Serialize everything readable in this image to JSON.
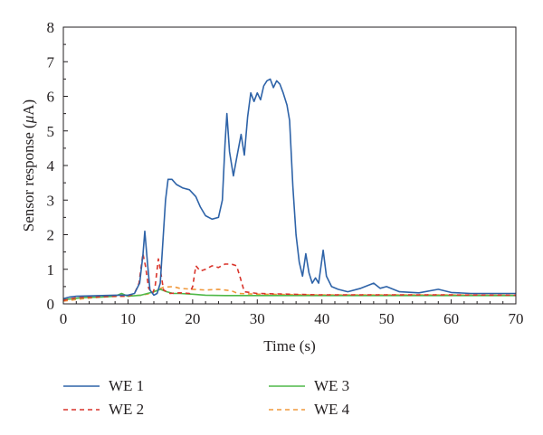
{
  "chart_data": {
    "type": "line",
    "xlabel": "Time (s)",
    "ylabel_prefix": "Sensor response (",
    "ylabel_unit": "μ",
    "ylabel_suffix": "A)",
    "xlim": [
      0,
      70
    ],
    "ylim": [
      0,
      8
    ],
    "xticks": [
      0,
      10,
      20,
      30,
      40,
      50,
      60,
      70
    ],
    "yticks": [
      0,
      1,
      2,
      3,
      4,
      5,
      6,
      7,
      8
    ],
    "grid": false,
    "legend_position": "bottom",
    "series": [
      {
        "name": "WE 1",
        "color": "#2e63a8",
        "dash": "solid",
        "points": [
          [
            0,
            0.15
          ],
          [
            1,
            0.2
          ],
          [
            2,
            0.22
          ],
          [
            4,
            0.23
          ],
          [
            6,
            0.24
          ],
          [
            8,
            0.25
          ],
          [
            10,
            0.25
          ],
          [
            11,
            0.3
          ],
          [
            11.8,
            0.6
          ],
          [
            12.3,
            1.4
          ],
          [
            12.6,
            2.1
          ],
          [
            13,
            1.2
          ],
          [
            13.4,
            0.4
          ],
          [
            14,
            0.25
          ],
          [
            14.5,
            0.3
          ],
          [
            15,
            0.6
          ],
          [
            15.4,
            1.8
          ],
          [
            15.8,
            3.0
          ],
          [
            16.2,
            3.6
          ],
          [
            16.8,
            3.6
          ],
          [
            17.5,
            3.45
          ],
          [
            18.5,
            3.35
          ],
          [
            19.5,
            3.3
          ],
          [
            20.5,
            3.1
          ],
          [
            21.2,
            2.8
          ],
          [
            22,
            2.55
          ],
          [
            23,
            2.45
          ],
          [
            24,
            2.5
          ],
          [
            24.6,
            3.0
          ],
          [
            25,
            4.6
          ],
          [
            25.3,
            5.5
          ],
          [
            25.7,
            4.4
          ],
          [
            26.3,
            3.7
          ],
          [
            26.8,
            4.2
          ],
          [
            27.5,
            4.9
          ],
          [
            28,
            4.3
          ],
          [
            28.5,
            5.4
          ],
          [
            29,
            6.1
          ],
          [
            29.5,
            5.85
          ],
          [
            30,
            6.1
          ],
          [
            30.5,
            5.9
          ],
          [
            31,
            6.3
          ],
          [
            31.5,
            6.45
          ],
          [
            32,
            6.5
          ],
          [
            32.5,
            6.25
          ],
          [
            33,
            6.45
          ],
          [
            33.5,
            6.35
          ],
          [
            34,
            6.1
          ],
          [
            34.6,
            5.75
          ],
          [
            35,
            5.3
          ],
          [
            35.5,
            3.4
          ],
          [
            36,
            2.0
          ],
          [
            36.5,
            1.2
          ],
          [
            37,
            0.8
          ],
          [
            37.5,
            1.45
          ],
          [
            38,
            0.9
          ],
          [
            38.5,
            0.6
          ],
          [
            39,
            0.75
          ],
          [
            39.5,
            0.6
          ],
          [
            40.2,
            1.55
          ],
          [
            40.7,
            0.8
          ],
          [
            41.5,
            0.5
          ],
          [
            42.5,
            0.42
          ],
          [
            44,
            0.35
          ],
          [
            46,
            0.45
          ],
          [
            48,
            0.6
          ],
          [
            49,
            0.45
          ],
          [
            50,
            0.5
          ],
          [
            52,
            0.35
          ],
          [
            55,
            0.32
          ],
          [
            58,
            0.42
          ],
          [
            60,
            0.33
          ],
          [
            63,
            0.3
          ],
          [
            67,
            0.3
          ],
          [
            70,
            0.3
          ]
        ]
      },
      {
        "name": "WE 2",
        "color": "#d9342b",
        "dash": "5,4",
        "points": [
          [
            0,
            0.1
          ],
          [
            2,
            0.18
          ],
          [
            5,
            0.2
          ],
          [
            8,
            0.22
          ],
          [
            10,
            0.22
          ],
          [
            11,
            0.3
          ],
          [
            11.7,
            0.6
          ],
          [
            12.3,
            1.45
          ],
          [
            12.7,
            1.1
          ],
          [
            13.2,
            0.45
          ],
          [
            13.8,
            0.3
          ],
          [
            14.2,
            0.5
          ],
          [
            14.7,
            1.3
          ],
          [
            15,
            1.0
          ],
          [
            15.5,
            0.4
          ],
          [
            16.5,
            0.3
          ],
          [
            18,
            0.32
          ],
          [
            19.5,
            0.3
          ],
          [
            20,
            0.5
          ],
          [
            20.5,
            1.1
          ],
          [
            21.2,
            0.95
          ],
          [
            22,
            1.0
          ],
          [
            23,
            1.1
          ],
          [
            24,
            1.05
          ],
          [
            25,
            1.15
          ],
          [
            26,
            1.15
          ],
          [
            26.8,
            1.1
          ],
          [
            27.3,
            0.8
          ],
          [
            28,
            0.35
          ],
          [
            30,
            0.3
          ],
          [
            35,
            0.28
          ],
          [
            40,
            0.26
          ],
          [
            50,
            0.26
          ],
          [
            60,
            0.26
          ],
          [
            70,
            0.25
          ]
        ]
      },
      {
        "name": "WE 3",
        "color": "#4fb848",
        "dash": "solid",
        "points": [
          [
            0,
            0.12
          ],
          [
            3,
            0.18
          ],
          [
            6,
            0.2
          ],
          [
            8,
            0.22
          ],
          [
            9,
            0.3
          ],
          [
            10,
            0.22
          ],
          [
            12,
            0.25
          ],
          [
            13,
            0.3
          ],
          [
            14,
            0.35
          ],
          [
            15,
            0.42
          ],
          [
            16,
            0.35
          ],
          [
            17,
            0.3
          ],
          [
            18,
            0.3
          ],
          [
            20,
            0.28
          ],
          [
            22,
            0.25
          ],
          [
            25,
            0.24
          ],
          [
            30,
            0.24
          ],
          [
            40,
            0.24
          ],
          [
            50,
            0.24
          ],
          [
            60,
            0.24
          ],
          [
            70,
            0.24
          ]
        ]
      },
      {
        "name": "WE 4",
        "color": "#f0983b",
        "dash": "5,4",
        "points": [
          [
            0,
            0.08
          ],
          [
            3,
            0.15
          ],
          [
            6,
            0.2
          ],
          [
            9,
            0.22
          ],
          [
            12,
            0.25
          ],
          [
            13.5,
            0.3
          ],
          [
            14.5,
            0.4
          ],
          [
            15.5,
            0.48
          ],
          [
            17,
            0.5
          ],
          [
            18,
            0.45
          ],
          [
            20,
            0.42
          ],
          [
            22,
            0.4
          ],
          [
            24,
            0.42
          ],
          [
            26,
            0.38
          ],
          [
            27,
            0.3
          ],
          [
            30,
            0.28
          ],
          [
            40,
            0.26
          ],
          [
            50,
            0.26
          ],
          [
            60,
            0.26
          ],
          [
            70,
            0.25
          ]
        ]
      }
    ]
  }
}
